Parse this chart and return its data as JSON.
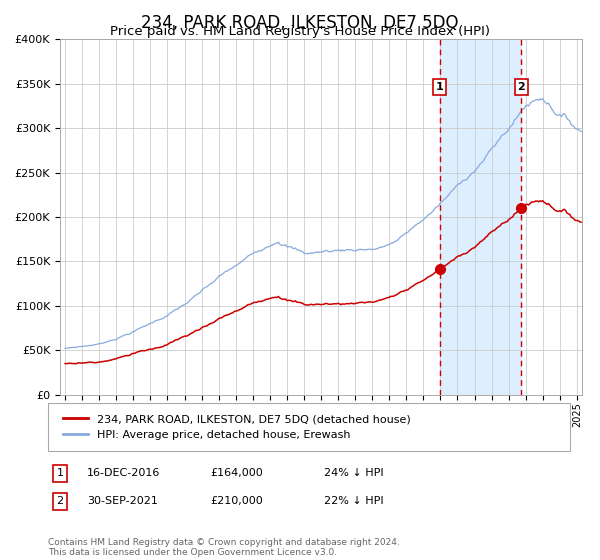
{
  "title": "234, PARK ROAD, ILKESTON, DE7 5DQ",
  "subtitle": "Price paid vs. HM Land Registry's House Price Index (HPI)",
  "title_fontsize": 12,
  "subtitle_fontsize": 9.5,
  "background_color": "#ffffff",
  "plot_bg_color": "#ffffff",
  "grid_color": "#cccccc",
  "shaded_region_color": "#ddeeff",
  "red_line_color": "#cc0000",
  "blue_line_color": "#88aadd",
  "sale1_date_num": 2016.96,
  "sale1_price": 164000,
  "sale2_date_num": 2021.75,
  "sale2_price": 210000,
  "legend1": "234, PARK ROAD, ILKESTON, DE7 5DQ (detached house)",
  "legend2": "HPI: Average price, detached house, Erewash",
  "annotation1_label": "1",
  "annotation1_date": "16-DEC-2016",
  "annotation1_price": "£164,000",
  "annotation1_pct": "24% ↓ HPI",
  "annotation2_label": "2",
  "annotation2_date": "30-SEP-2021",
  "annotation2_price": "£210,000",
  "annotation2_pct": "22% ↓ HPI",
  "footer": "Contains HM Land Registry data © Crown copyright and database right 2024.\nThis data is licensed under the Open Government Licence v3.0.",
  "ylim": [
    0,
    400000
  ],
  "xlim_start": 1994.7,
  "xlim_end": 2025.3
}
